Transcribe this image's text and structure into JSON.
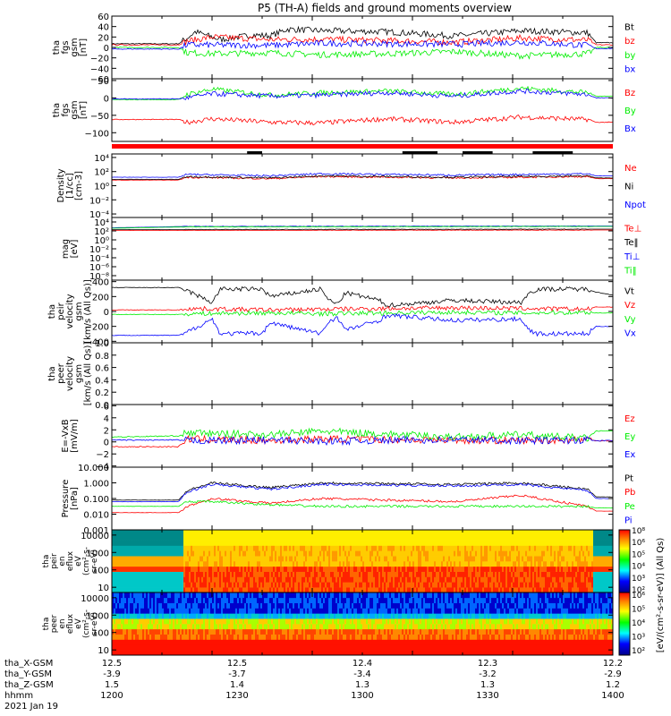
{
  "title": "P5 (TH-A) fields and ground moments overview",
  "footer": {
    "date": "2021 Jan 19",
    "rows": [
      {
        "label": "tha_X-GSM",
        "values": [
          "12.5",
          "12.5",
          "12.4",
          "12.3",
          "12.2"
        ]
      },
      {
        "label": "tha_Y-GSM",
        "values": [
          "-3.9",
          "-3.7",
          "-3.4",
          "-3.2",
          "-2.9"
        ]
      },
      {
        "label": "tha_Z-GSM",
        "values": [
          "1.5",
          "1.4",
          "1.3",
          "1.3",
          "1.2"
        ]
      },
      {
        "label": "hhmm",
        "values": [
          "1200",
          "1230",
          "1300",
          "1330",
          "1400"
        ]
      }
    ]
  },
  "colorbar": {
    "label": "[eV/(cm²-s-sr-eV)] (All Qs)",
    "ticks_top": [
      "10⁸",
      "10⁶",
      "10⁵",
      "10⁴",
      "10³",
      "10²"
    ],
    "ticks_bottom": [
      "10⁶",
      "10⁵",
      "10⁴",
      "10³",
      "10²"
    ]
  },
  "colors": {
    "black": "#000000",
    "red": "#ff0000",
    "green": "#00ee00",
    "blue": "#0000ff"
  },
  "chart_data": [
    {
      "id": "fgs_gsm",
      "type": "line",
      "ylabel": [
        "tha",
        "fgs",
        "gsm",
        "[nT]"
      ],
      "ylim": [
        -60,
        60
      ],
      "yticks": [
        {
          "v": 60,
          "t": "60"
        },
        {
          "v": 40,
          "t": "40"
        },
        {
          "v": 20,
          "t": "20"
        },
        {
          "v": 0,
          "t": "0"
        },
        {
          "v": -20,
          "t": "−20"
        },
        {
          "v": -40,
          "t": "−40"
        },
        {
          "v": -60,
          "t": "−60"
        }
      ],
      "series": [
        {
          "name": "Bt",
          "color": "black",
          "x": [
            0,
            8,
            9,
            10,
            13,
            17,
            19,
            21,
            25,
            33,
            41,
            49,
            57,
            58,
            60
          ],
          "y": [
            7,
            7,
            18,
            30,
            15,
            24,
            22,
            35,
            32,
            30,
            22,
            32,
            28,
            9,
            9
          ]
        },
        {
          "name": "bz",
          "color": "red",
          "x": [
            0,
            8,
            9,
            12,
            19,
            25,
            41,
            49,
            57,
            58,
            60
          ],
          "y": [
            5,
            5,
            12,
            20,
            15,
            16,
            10,
            18,
            14,
            5,
            5
          ]
        },
        {
          "name": "by",
          "color": "green",
          "x": [
            0,
            8,
            9,
            12,
            19,
            25,
            33,
            41,
            49,
            57,
            58,
            60
          ],
          "y": [
            0,
            0,
            -10,
            -12,
            -10,
            -14,
            -12,
            -8,
            -16,
            -12,
            0,
            0
          ]
        },
        {
          "name": "bx",
          "color": "blue",
          "x": [
            0,
            8,
            9,
            19,
            25,
            41,
            49,
            57,
            58,
            60
          ],
          "y": [
            -3,
            -3,
            5,
            4,
            8,
            6,
            10,
            4,
            -2,
            -2
          ]
        }
      ]
    },
    {
      "id": "fgs_gsm_nT",
      "type": "line",
      "ylabel": [
        "tha",
        "fgs",
        "gsm",
        "[nT]"
      ],
      "ylim": [
        -125,
        55
      ],
      "yticks": [
        {
          "v": 50,
          "t": "50"
        },
        {
          "v": 0,
          "t": "0"
        },
        {
          "v": -50,
          "t": "−50"
        },
        {
          "v": -100,
          "t": "−100"
        }
      ],
      "series": [
        {
          "name": "Bz",
          "color": "red",
          "x": [
            0,
            8,
            9,
            12,
            19,
            25,
            33,
            41,
            49,
            57,
            58,
            60
          ],
          "y": [
            -62,
            -62,
            -70,
            -60,
            -70,
            -72,
            -60,
            -70,
            -55,
            -62,
            -70,
            -70
          ]
        },
        {
          "name": "By",
          "color": "green",
          "x": [
            0,
            8,
            9,
            12,
            19,
            25,
            33,
            41,
            49,
            57,
            58,
            60
          ],
          "y": [
            -5,
            -5,
            10,
            25,
            8,
            15,
            20,
            10,
            28,
            15,
            5,
            5
          ]
        },
        {
          "name": "Bx",
          "color": "blue",
          "x": [
            0,
            8,
            9,
            12,
            19,
            25,
            33,
            41,
            49,
            57,
            58,
            60
          ],
          "y": [
            -3,
            -3,
            0,
            12,
            5,
            8,
            15,
            5,
            20,
            10,
            0,
            0
          ]
        }
      ]
    },
    {
      "id": "density",
      "type": "line",
      "ylabel": [
        "Density",
        "[1/cc]",
        "[cm-3]"
      ],
      "ylim": [
        -4.5,
        4.5
      ],
      "scale": "log",
      "yticks": [
        {
          "v": 4,
          "t": "10⁴"
        },
        {
          "v": 2,
          "t": "10²"
        },
        {
          "v": 0,
          "t": "10⁰"
        },
        {
          "v": -2,
          "t": "10⁻²"
        },
        {
          "v": -4,
          "t": "10⁻⁴"
        }
      ],
      "series": [
        {
          "name": "Ne",
          "color": "red",
          "x": [
            0,
            8,
            9,
            19,
            25,
            41,
            57,
            58,
            60
          ],
          "y": [
            0.8,
            0.8,
            1.2,
            1.0,
            1.3,
            1.1,
            1.3,
            1.0,
            1.0
          ]
        },
        {
          "name": "Ni",
          "color": "black",
          "x": [
            0,
            8,
            9,
            19,
            25,
            41,
            57,
            58,
            60
          ],
          "y": [
            0.9,
            0.9,
            1.3,
            1.1,
            1.4,
            1.2,
            1.4,
            1.1,
            1.1
          ]
        },
        {
          "name": "Npot",
          "color": "blue",
          "x": [
            0,
            8,
            9,
            19,
            25,
            41,
            57,
            58,
            60
          ],
          "y": [
            1.2,
            1.2,
            1.6,
            1.4,
            1.7,
            1.5,
            1.7,
            1.4,
            1.4
          ]
        }
      ]
    },
    {
      "id": "temperature",
      "type": "line",
      "ylabel": [
        "mag",
        "[eV]"
      ],
      "ylim": [
        -9,
        5
      ],
      "scale": "log",
      "yticks": [
        {
          "v": 4,
          "t": "10⁴"
        },
        {
          "v": 2,
          "t": "10²"
        },
        {
          "v": 0,
          "t": "10⁰"
        },
        {
          "v": -2,
          "t": "10⁻²"
        },
        {
          "v": -4,
          "t": "10⁻⁴"
        },
        {
          "v": -6,
          "t": "10⁻⁶"
        },
        {
          "v": -8,
          "t": "10⁻⁸"
        }
      ],
      "series": [
        {
          "name": "Te⊥",
          "color": "red",
          "x": [
            0,
            60
          ],
          "y": [
            2.1,
            2.2
          ]
        },
        {
          "name": "Te‖",
          "color": "black",
          "x": [
            0,
            60
          ],
          "y": [
            2.3,
            2.4
          ]
        },
        {
          "name": "Ti⊥",
          "color": "blue",
          "x": [
            0,
            9,
            60
          ],
          "y": [
            2.7,
            3.0,
            3.1
          ]
        },
        {
          "name": "Ti‖",
          "color": "green",
          "x": [
            0,
            9,
            60
          ],
          "y": [
            2.6,
            2.9,
            3.0
          ]
        }
      ]
    },
    {
      "id": "peir_velocity",
      "type": "line",
      "ylabel": [
        "tha",
        "peir",
        "velocity",
        "gsm",
        "[km/s (All Qs)]"
      ],
      "ylim": [
        -420,
        420
      ],
      "yticks": [
        {
          "v": 400,
          "t": "400"
        },
        {
          "v": 200,
          "t": "200"
        },
        {
          "v": 0,
          "t": "0"
        },
        {
          "v": -200,
          "t": "−200"
        },
        {
          "v": -400,
          "t": "−400"
        }
      ],
      "series": [
        {
          "name": "Vt",
          "color": "black",
          "x": [
            0,
            8,
            9,
            12,
            13,
            18,
            19,
            25,
            26,
            27,
            28,
            32,
            33,
            41,
            49,
            50,
            51,
            57,
            58,
            60
          ],
          "y": [
            320,
            320,
            280,
            120,
            300,
            300,
            200,
            300,
            150,
            100,
            250,
            150,
            80,
            150,
            120,
            250,
            300,
            300,
            260,
            220
          ]
        },
        {
          "name": "Vz",
          "color": "red",
          "x": [
            0,
            8,
            9,
            19,
            25,
            41,
            49,
            57,
            58,
            60
          ],
          "y": [
            20,
            20,
            40,
            20,
            30,
            50,
            40,
            30,
            60,
            60
          ]
        },
        {
          "name": "Vy",
          "color": "green",
          "x": [
            0,
            8,
            9,
            19,
            25,
            41,
            49,
            57,
            58,
            60
          ],
          "y": [
            -40,
            -40,
            -30,
            -20,
            -30,
            -10,
            -20,
            -10,
            -20,
            -20
          ]
        },
        {
          "name": "Vx",
          "color": "blue",
          "x": [
            0,
            8,
            9,
            12,
            13,
            18,
            19,
            25,
            26,
            27,
            28,
            32,
            33,
            41,
            49,
            50,
            51,
            57,
            58,
            60
          ],
          "y": [
            -320,
            -320,
            -280,
            -100,
            -300,
            -290,
            -150,
            -300,
            -130,
            -80,
            -250,
            -120,
            -50,
            -120,
            -100,
            -250,
            -300,
            -300,
            -200,
            -200
          ]
        }
      ]
    },
    {
      "id": "peer_velocity",
      "type": "line",
      "ylabel": [
        "tha",
        "peer",
        "velocity",
        "gsm",
        "[km/s (All Qs)]"
      ],
      "ylim": [
        0,
        1
      ],
      "yticks": [
        {
          "v": 1,
          "t": "1.0"
        },
        {
          "v": 0.8,
          "t": "0.8"
        },
        {
          "v": 0.6,
          "t": "0.6"
        },
        {
          "v": 0.4,
          "t": "0.4"
        },
        {
          "v": 0.2,
          "t": "0.2"
        },
        {
          "v": 0,
          "t": "0.0"
        }
      ],
      "series": []
    },
    {
      "id": "efield",
      "type": "line",
      "ylabel": [
        "E=-VxB",
        "[mV/m]"
      ],
      "ylim": [
        -4.2,
        6.2
      ],
      "yticks": [
        {
          "v": 6,
          "t": "6"
        },
        {
          "v": 4,
          "t": "4"
        },
        {
          "v": 2,
          "t": "2"
        },
        {
          "v": 0,
          "t": "0"
        },
        {
          "v": -2,
          "t": "−2"
        },
        {
          "v": -4,
          "t": "−4"
        }
      ],
      "series": [
        {
          "name": "Ez",
          "color": "red",
          "x": [
            0,
            8,
            9,
            19,
            25,
            41,
            49,
            57,
            58,
            60
          ],
          "y": [
            -0.8,
            -0.8,
            0.5,
            0.2,
            0.5,
            0.3,
            0.2,
            0.4,
            0.2,
            0.2
          ]
        },
        {
          "name": "Ey",
          "color": "green",
          "x": [
            0,
            8,
            9,
            19,
            25,
            41,
            49,
            57,
            58,
            60
          ],
          "y": [
            0.8,
            1.0,
            1.5,
            1.2,
            1.8,
            0.8,
            1.2,
            0.6,
            1.8,
            1.8
          ]
        },
        {
          "name": "Ex",
          "color": "blue",
          "x": [
            0,
            8,
            9,
            19,
            25,
            41,
            49,
            57,
            58,
            60
          ],
          "y": [
            0.3,
            0.3,
            0.2,
            0.3,
            0.1,
            0.4,
            0.2,
            0.3,
            0.2,
            0.2
          ]
        }
      ]
    },
    {
      "id": "pressure",
      "type": "line",
      "ylabel": [
        "Pressure",
        "[nPa]"
      ],
      "ylim": [
        -3,
        1
      ],
      "scale": "log",
      "yticks": [
        {
          "v": 1,
          "t": "10.000"
        },
        {
          "v": 0,
          "t": "1.000"
        },
        {
          "v": -1,
          "t": "0.100"
        },
        {
          "v": -2,
          "t": "0.010"
        },
        {
          "v": -3,
          "t": "0.001"
        }
      ],
      "series": [
        {
          "name": "Pt",
          "color": "black",
          "x": [
            0,
            8,
            9,
            12,
            19,
            25,
            41,
            49,
            57,
            58,
            60
          ],
          "y": [
            -1.1,
            -1.1,
            -0.5,
            0,
            -0.3,
            0,
            -0.1,
            0,
            -0.4,
            -0.9,
            -0.9
          ]
        },
        {
          "name": "Pb",
          "color": "red",
          "x": [
            0,
            8,
            9,
            12,
            19,
            25,
            41,
            49,
            57,
            58,
            60
          ],
          "y": [
            -1.9,
            -1.9,
            -1.5,
            -1.0,
            -1.3,
            -1.0,
            -1.2,
            -0.8,
            -1.5,
            -1.8,
            -1.8
          ]
        },
        {
          "name": "Pe",
          "color": "green",
          "x": [
            0,
            8,
            9,
            12,
            19,
            25,
            41,
            57,
            58,
            60
          ],
          "y": [
            -1.5,
            -1.5,
            -1.2,
            -1.2,
            -1.4,
            -1.5,
            -1.5,
            -1.5,
            -1.6,
            -1.6
          ]
        },
        {
          "name": "Pi",
          "color": "blue",
          "x": [
            0,
            8,
            9,
            12,
            19,
            25,
            41,
            49,
            57,
            58,
            60
          ],
          "y": [
            -1.2,
            -1.2,
            -0.6,
            -0.1,
            -0.4,
            -0.1,
            -0.2,
            -0.1,
            -0.5,
            -1.0,
            -1.0
          ]
        }
      ]
    },
    {
      "id": "peir_spec",
      "type": "heatmap",
      "ylabel": [
        "tha",
        "peir",
        "en",
        "eflux",
        "eV",
        "(cm²-s-",
        "sr-eV)"
      ],
      "ylim": [
        0.7,
        4.3
      ],
      "scale": "log",
      "yticks": [
        {
          "v": 4,
          "t": "10000"
        },
        {
          "v": 3,
          "t": "1000"
        },
        {
          "v": 2,
          "t": "100"
        },
        {
          "v": 1,
          "t": "10"
        }
      ]
    },
    {
      "id": "peer_spec",
      "type": "heatmap",
      "ylabel": [
        "tha",
        "peer",
        "en",
        "eflux",
        "eV",
        "(cm²-s-",
        "sr-eV)"
      ],
      "ylim": [
        0.7,
        4.3
      ],
      "scale": "log",
      "yticks": [
        {
          "v": 4,
          "t": "10000"
        },
        {
          "v": 3,
          "t": "1000"
        },
        {
          "v": 2,
          "t": "100"
        },
        {
          "v": 1,
          "t": "10"
        }
      ]
    }
  ]
}
